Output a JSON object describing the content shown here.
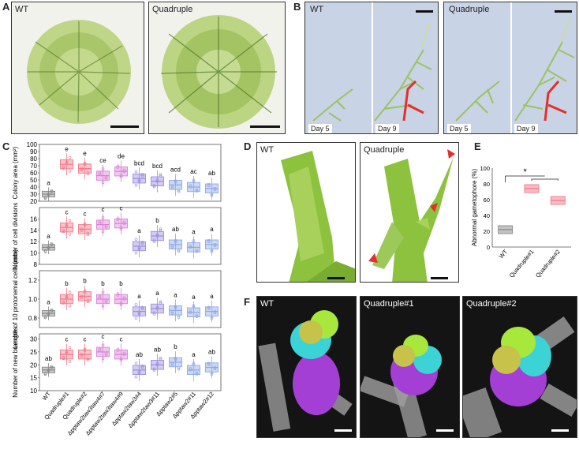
{
  "panels": {
    "A": {
      "label": "A",
      "wt": "WT",
      "quad": "Quadruple"
    },
    "B": {
      "label": "B",
      "wt": "WT",
      "quad": "Quadruple",
      "day5": "Day 5",
      "day9": "Day 9"
    },
    "C": {
      "label": "C"
    },
    "D": {
      "label": "D",
      "wt": "WT",
      "quad": "Quadruple"
    },
    "E": {
      "label": "E"
    },
    "F": {
      "label": "F",
      "wt": "WT",
      "quad1": "Quadruple#1",
      "quad2": "Quadruple#2"
    }
  },
  "colors": {
    "wt": "#888888",
    "quad": "#f07a8a",
    "double1": "#d982d6",
    "double2": "#9a8ee0",
    "double3": "#8fa8e6",
    "red_arrow": "#e3302a",
    "moss": "#9cc35a"
  },
  "chart_data": [
    {
      "type": "box",
      "panel": "C",
      "ylabel": "Colony area (mm²)",
      "categories": [
        "WT",
        "Quadruple#1",
        "Quadruple#2",
        "Δpptaw2taw3taw4#7",
        "Δpptaw2taw3taw4#9",
        "Δpptaw2taw3#4",
        "Δpptaw2taw3#11",
        "Δpptaw2#5",
        "Δpptaw2#11",
        "Δpptaw2#12"
      ],
      "ylim": [
        20,
        100
      ],
      "yticks": [
        "20",
        "30",
        "40",
        "50",
        "60",
        "70",
        "80",
        "90",
        "100"
      ],
      "medians": [
        30,
        72,
        66,
        56,
        62,
        52,
        48,
        43,
        40,
        38
      ],
      "letters": [
        "a",
        "e",
        "e",
        "ce",
        "de",
        "bcd",
        "bcd",
        "acd",
        "ac",
        "ab"
      ]
    },
    {
      "type": "box",
      "panel": "C",
      "ylabel": "Number of cell divisions",
      "ylim": [
        8,
        18
      ],
      "yticks": [
        "8",
        "10",
        "12",
        "14",
        "16"
      ],
      "medians": [
        11,
        14.5,
        14.2,
        15,
        15.2,
        11.2,
        13,
        11.5,
        11,
        11.5
      ],
      "letters": [
        "a",
        "c",
        "c",
        "c",
        "c",
        "a",
        "b",
        "ab",
        "a",
        "a"
      ]
    },
    {
      "type": "box",
      "panel": "C",
      "ylabel": "Length of 10 protonemal cells (mm)",
      "ylim": [
        0.7,
        1.3
      ],
      "yticks": [
        "0.8",
        "1.0",
        "1.2"
      ],
      "medians": [
        0.85,
        1.0,
        1.03,
        1.0,
        1.0,
        0.87,
        0.9,
        0.88,
        0.86,
        0.87
      ],
      "letters": [
        "a",
        "b",
        "b",
        "b",
        "b",
        "a",
        "a",
        "a",
        "a",
        "a"
      ]
    },
    {
      "type": "box",
      "panel": "C",
      "ylabel": "Number of new branches",
      "ylim": [
        10,
        32
      ],
      "yticks": [
        "10",
        "15",
        "20",
        "25",
        "30"
      ],
      "medians": [
        18,
        24,
        24,
        25,
        24,
        18,
        20,
        21,
        18,
        19
      ],
      "letters": [
        "ab",
        "c",
        "c",
        "c",
        "c",
        "ab",
        "ab",
        "b",
        "a",
        "ab"
      ]
    },
    {
      "type": "box",
      "panel": "E",
      "ylabel": "Abnormal gametophore (%)",
      "categories": [
        "WT",
        "Quadruple#1",
        "Quadruple#2"
      ],
      "ylim": [
        0,
        100
      ],
      "yticks": [
        "0",
        "20",
        "40",
        "60",
        "80",
        "100"
      ],
      "medians": [
        22,
        74,
        59
      ],
      "significance": "*"
    }
  ]
}
